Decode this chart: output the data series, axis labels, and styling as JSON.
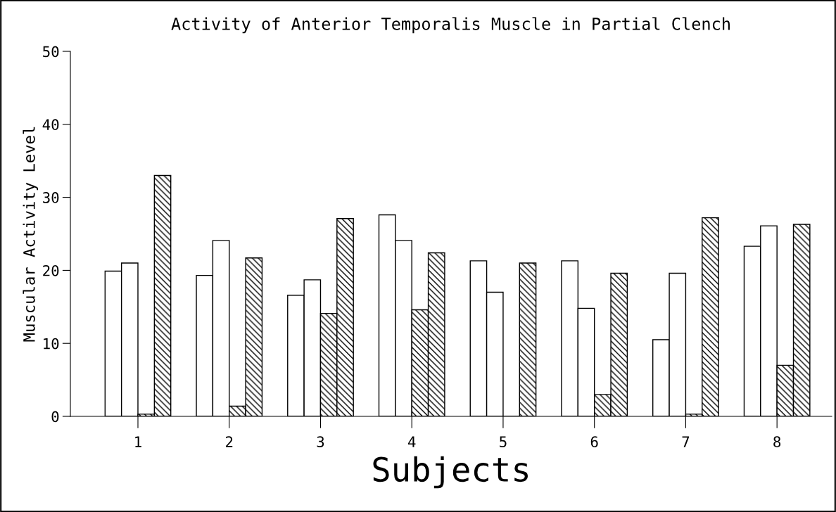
{
  "chart_data": {
    "type": "bar",
    "title": "Activity of Anterior Temporalis Muscle in Partial Clench",
    "xlabel": "Subjects",
    "ylabel": "Muscular Activity Level",
    "categories": [
      "1",
      "2",
      "3",
      "4",
      "5",
      "6",
      "7",
      "8"
    ],
    "series": [
      {
        "color": "#ffffff",
        "values": [
          19.9,
          19.3,
          16.6,
          27.6,
          21.3,
          21.3,
          10.5,
          23.3
        ]
      },
      {
        "color": "#ffffff",
        "values": [
          21.0,
          24.1,
          18.7,
          24.1,
          17.0,
          14.8,
          19.6,
          26.1
        ]
      },
      {
        "color": "#000000",
        "values": [
          0.3,
          1.4,
          14.1,
          14.6,
          0,
          3.0,
          0.3,
          7.0
        ]
      },
      {
        "color": "#000000",
        "values": [
          33.0,
          21.7,
          27.1,
          22.4,
          21.0,
          19.6,
          27.2,
          26.3
        ]
      }
    ],
    "ylim": [
      0,
      50
    ],
    "yticks": [
      0,
      10,
      20,
      30,
      40,
      50
    ],
    "grid": false,
    "legend": false
  }
}
